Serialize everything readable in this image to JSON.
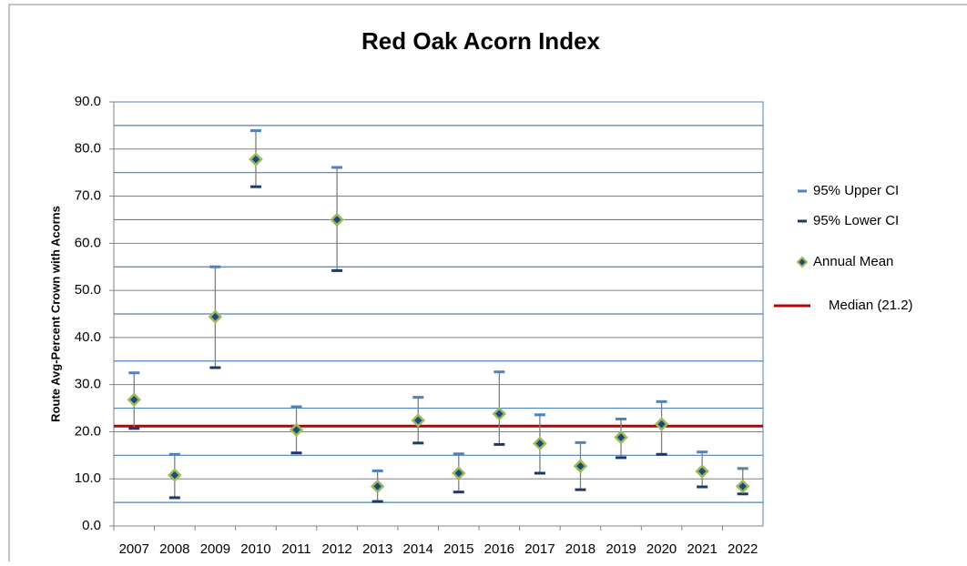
{
  "chart_data": {
    "type": "ci",
    "title": "Red Oak Acorn Index",
    "y_label": "Route Avg-Percent Crown with Acorns",
    "categories": [
      "2007",
      "2008",
      "2009",
      "2010",
      "2011",
      "2012",
      "2013",
      "2014",
      "2015",
      "2016",
      "2017",
      "2018",
      "2019",
      "2020",
      "2021",
      "2022"
    ],
    "series": [
      {
        "name": "95% Upper CI",
        "color": "#4f81bd",
        "values": [
          32.5,
          15.2,
          55.0,
          83.9,
          25.3,
          76.1,
          11.7,
          27.3,
          15.3,
          32.7,
          23.6,
          17.7,
          22.7,
          26.4,
          15.7,
          12.2
        ]
      },
      {
        "name": "95% Lower CI",
        "color": "#1f3864",
        "values": [
          20.7,
          6.0,
          33.6,
          72.0,
          15.5,
          54.2,
          5.2,
          17.6,
          7.2,
          17.3,
          11.2,
          7.7,
          14.5,
          15.2,
          8.3,
          6.8
        ]
      },
      {
        "name": "Annual Mean",
        "color": "#9bbb59",
        "values": [
          26.8,
          10.8,
          44.4,
          77.8,
          20.4,
          65.0,
          8.4,
          22.4,
          11.2,
          23.8,
          17.5,
          12.7,
          18.8,
          21.6,
          11.6,
          8.4
        ]
      }
    ],
    "median": {
      "name": "Median (21.2)",
      "value": 21.2,
      "color": "#c00000"
    },
    "ylim": [
      0,
      90
    ],
    "yticks": [
      {
        "value": 0,
        "label": "0.0"
      },
      {
        "value": 10,
        "label": "10.0"
      },
      {
        "value": 20,
        "label": "20.0"
      },
      {
        "value": 30,
        "label": "30.0"
      },
      {
        "value": 40,
        "label": "40.0"
      },
      {
        "value": 50,
        "label": "50.0"
      },
      {
        "value": 60,
        "label": "60.0"
      },
      {
        "value": 70,
        "label": "70.0"
      },
      {
        "value": 80,
        "label": "80.0"
      },
      {
        "value": 90,
        "label": "90.0"
      }
    ],
    "minor_gridlines": [
      5,
      15,
      25,
      35,
      45,
      55,
      65,
      75,
      85
    ],
    "grid": true
  }
}
